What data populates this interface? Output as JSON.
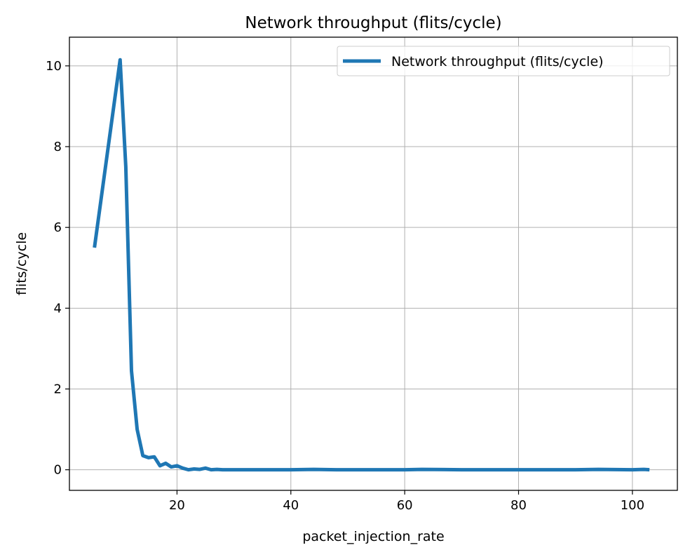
{
  "chart_data": {
    "type": "line",
    "title": "Network throughput (flits/cycle)",
    "xlabel": "packet_injection_rate",
    "ylabel": "flits/cycle",
    "xlim": [
      1.1,
      107.9
    ],
    "ylim": [
      -0.51,
      10.71
    ],
    "xticks": [
      20,
      40,
      60,
      80,
      100
    ],
    "yticks": [
      0,
      2,
      4,
      6,
      8,
      10
    ],
    "xtick_labels": [
      "20",
      "40",
      "60",
      "80",
      "100"
    ],
    "ytick_labels": [
      "0",
      "2",
      "4",
      "6",
      "8",
      "10"
    ],
    "grid": true,
    "legend_position": "upper-right",
    "series": [
      {
        "name": "Network throughput (flits/cycle)",
        "color": "#1f77b4",
        "x": [
          5.5,
          10.0,
          11.0,
          12.0,
          13.0,
          14.0,
          15.0,
          16.0,
          17.0,
          18.0,
          19.0,
          20.0,
          21.0,
          22.0,
          23.0,
          24.0,
          25.0,
          26.0,
          27.0,
          28.0,
          29.0,
          30.0,
          32.0,
          35.0,
          38.0,
          40.0,
          44.0,
          48.0,
          55.0,
          60.0,
          63.0,
          70.0,
          80.0,
          90.0,
          94.0,
          100.0,
          102.0,
          103.0
        ],
        "y": [
          5.5,
          10.15,
          7.5,
          2.45,
          1.0,
          0.35,
          0.3,
          0.32,
          0.1,
          0.16,
          0.07,
          0.1,
          0.04,
          0.0,
          0.02,
          0.01,
          0.04,
          0.0,
          0.01,
          0.0,
          0.0,
          0.0,
          0.0,
          0.0,
          0.0,
          0.0,
          0.01,
          0.0,
          0.0,
          0.0,
          0.01,
          0.0,
          0.0,
          0.0,
          0.01,
          0.0,
          0.01,
          0.0
        ]
      }
    ]
  }
}
